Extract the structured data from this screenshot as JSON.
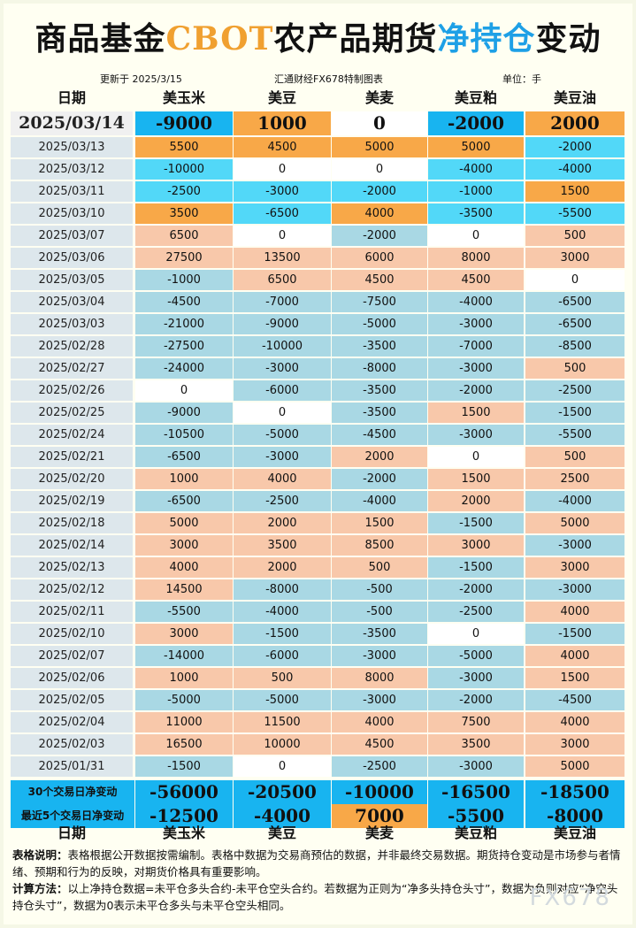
{
  "title": {
    "prefix": "商品基金",
    "cbot": "CBOT",
    "middle": "农产品期货",
    "net": "净持仓",
    "suffix": "变动"
  },
  "sub": {
    "updated": "更新于 2025/3/15",
    "source": "汇通财经FX678特制图表",
    "unit": "单位：手"
  },
  "headers": [
    "日期",
    "美玉米",
    "美豆",
    "美麦",
    "美豆粕",
    "美豆油"
  ],
  "top_row": {
    "date": "2025/03/14",
    "values": [
      "-9000",
      "1000",
      "0",
      "-2000",
      "2000"
    ]
  },
  "rows": [
    {
      "date": "2025/03/13",
      "values": [
        "5500",
        "4500",
        "5000",
        "5000",
        "-2000"
      ]
    },
    {
      "date": "2025/03/12",
      "values": [
        "-10000",
        "0",
        "0",
        "-4000",
        "-4000"
      ]
    },
    {
      "date": "2025/03/11",
      "values": [
        "-2500",
        "-3000",
        "-2000",
        "-1000",
        "1500"
      ]
    },
    {
      "date": "2025/03/10",
      "values": [
        "3500",
        "-6500",
        "4000",
        "-3500",
        "-5500"
      ]
    },
    {
      "date": "2025/03/07",
      "values": [
        "6500",
        "0",
        "-2000",
        "0",
        "500"
      ]
    },
    {
      "date": "2025/03/06",
      "values": [
        "27500",
        "13500",
        "6000",
        "8000",
        "3000"
      ]
    },
    {
      "date": "2025/03/05",
      "values": [
        "-1000",
        "6500",
        "4500",
        "4500",
        "0"
      ]
    },
    {
      "date": "2025/03/04",
      "values": [
        "-4500",
        "-7000",
        "-7500",
        "-4000",
        "-6500"
      ]
    },
    {
      "date": "2025/03/03",
      "values": [
        "-21000",
        "-9000",
        "-5000",
        "-3000",
        "-6500"
      ]
    },
    {
      "date": "2025/02/28",
      "values": [
        "-27500",
        "-10000",
        "-3500",
        "-7000",
        "-8500"
      ]
    },
    {
      "date": "2025/02/27",
      "values": [
        "-24000",
        "-3000",
        "-8000",
        "-3000",
        "500"
      ]
    },
    {
      "date": "2025/02/26",
      "values": [
        "0",
        "-6000",
        "-3500",
        "-2000",
        "-2500"
      ]
    },
    {
      "date": "2025/02/25",
      "values": [
        "-9000",
        "0",
        "-3500",
        "1500",
        "-1500"
      ]
    },
    {
      "date": "2025/02/24",
      "values": [
        "-10500",
        "-5000",
        "-4500",
        "-3000",
        "-5500"
      ]
    },
    {
      "date": "2025/02/21",
      "values": [
        "-6500",
        "-3000",
        "2000",
        "0",
        "500"
      ]
    },
    {
      "date": "2025/02/20",
      "values": [
        "1000",
        "4000",
        "-2000",
        "1500",
        "2500"
      ]
    },
    {
      "date": "2025/02/19",
      "values": [
        "-6500",
        "-2500",
        "-4000",
        "2000",
        "-4000"
      ]
    },
    {
      "date": "2025/02/18",
      "values": [
        "5000",
        "2000",
        "1500",
        "-1500",
        "5000"
      ]
    },
    {
      "date": "2025/02/14",
      "values": [
        "3000",
        "3500",
        "8500",
        "3000",
        "-3000"
      ]
    },
    {
      "date": "2025/02/13",
      "values": [
        "4000",
        "2000",
        "500",
        "-1500",
        "3000"
      ]
    },
    {
      "date": "2025/02/12",
      "values": [
        "14500",
        "-8000",
        "-500",
        "-2000",
        "-3000"
      ]
    },
    {
      "date": "2025/02/11",
      "values": [
        "-5500",
        "-4000",
        "-500",
        "-2500",
        "4000"
      ]
    },
    {
      "date": "2025/02/10",
      "values": [
        "3000",
        "-1500",
        "-3500",
        "0",
        "-1500"
      ]
    },
    {
      "date": "2025/02/07",
      "values": [
        "-14000",
        "-6000",
        "-3000",
        "-5000",
        "4000"
      ]
    },
    {
      "date": "2025/02/06",
      "values": [
        "1000",
        "500",
        "8000",
        "-3000",
        "1500"
      ]
    },
    {
      "date": "2025/02/05",
      "values": [
        "-5000",
        "-5000",
        "-3000",
        "-2000",
        "-4500"
      ]
    },
    {
      "date": "2025/02/04",
      "values": [
        "11000",
        "11500",
        "4000",
        "7500",
        "4000"
      ]
    },
    {
      "date": "2025/02/03",
      "values": [
        "16500",
        "10000",
        "4500",
        "3500",
        "3000"
      ]
    },
    {
      "date": "2025/01/31",
      "values": [
        "-1500",
        "0",
        "-2500",
        "-3000",
        "5000"
      ]
    }
  ],
  "summary": [
    {
      "label": "30个交易日净变动",
      "values": [
        "-56000",
        "-20500",
        "-10000",
        "-16500",
        "-18500"
      ]
    },
    {
      "label": "最近5个交易日净变动",
      "values": [
        "-12500",
        "-4000",
        "7000",
        "-5500",
        "-8000"
      ]
    }
  ],
  "notes": {
    "table_label": "表格说明：",
    "table_text": "表格根据公开数据按需编制。表格中数据为交易商预估的数据，并非最终交易数据。期货持仓变动是市场参与者情绪、预期和行为的反映，对期货价格具有重要影响。",
    "calc_label": "计算方法：",
    "calc_text": "以上净持仓数据=未平仓多头合约-未平仓空头合约。若数据为正则为“净多头持仓头寸”，数据为负则对应“净空头持仓头寸”，数据为0表示未平仓多头与未平仓空头相同。"
  },
  "watermark": "FX678",
  "colors": {
    "positive": "#f8c8aa",
    "negative": "#a9d8e4",
    "zero": "#ffffff",
    "top_positive": "#f8a848",
    "top_negative": "#18b4f0",
    "recent_negative": "#52d8f8"
  }
}
